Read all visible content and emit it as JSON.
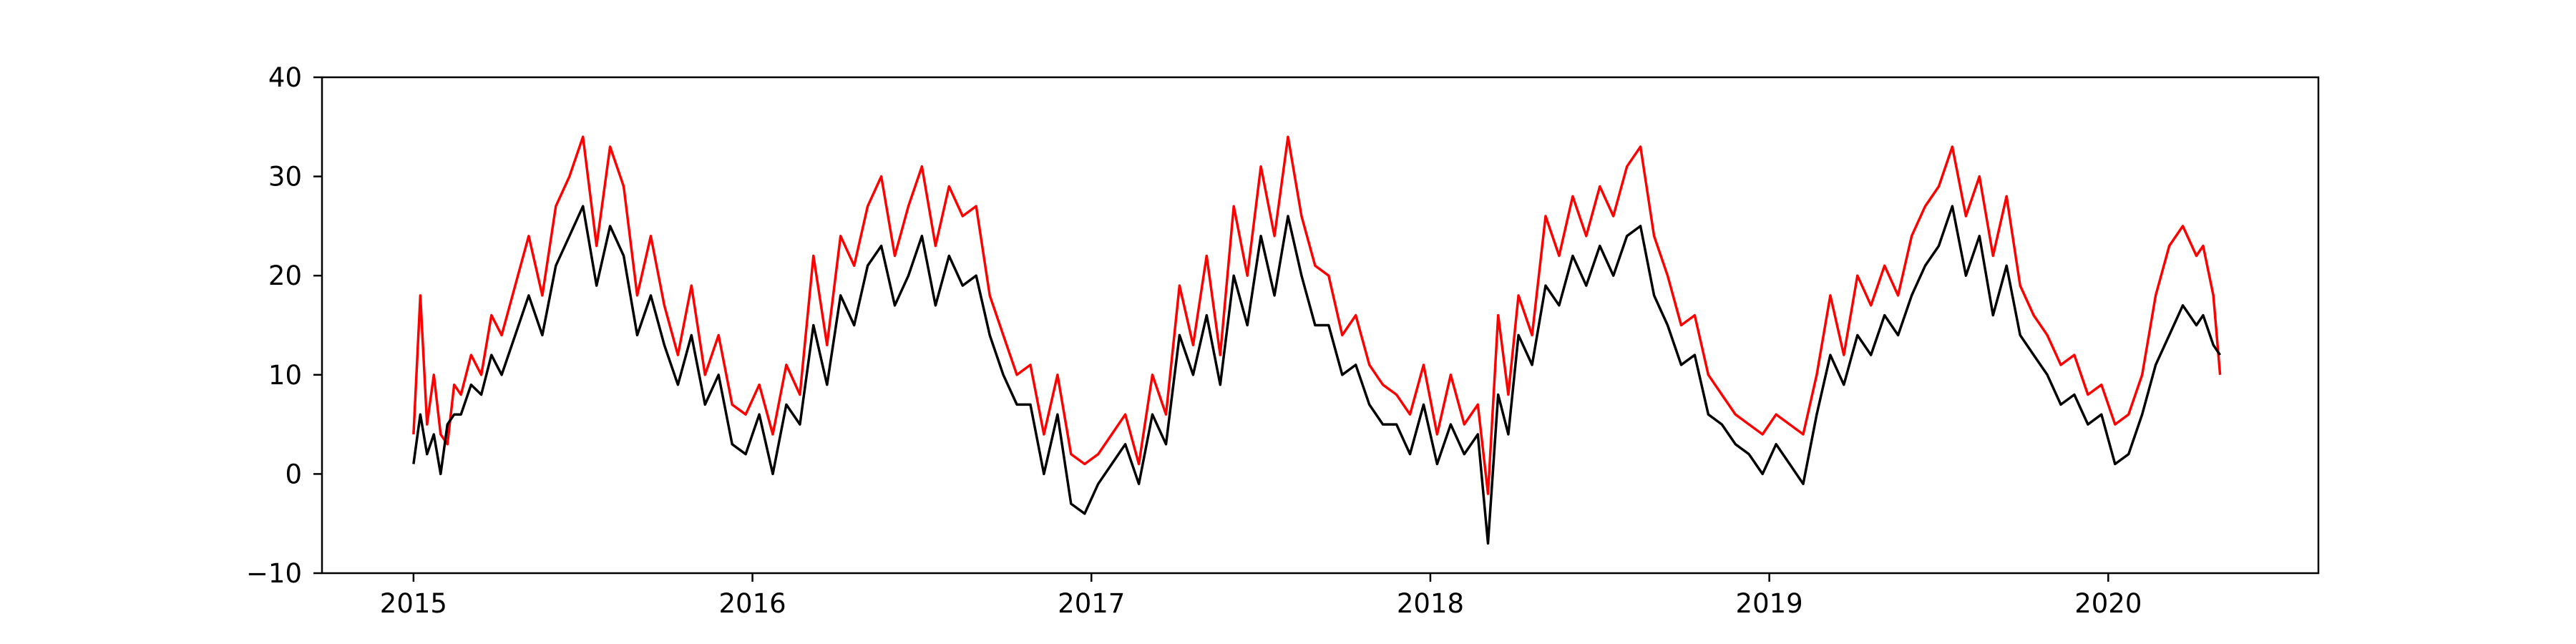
{
  "chart_data": {
    "type": "line",
    "title": "",
    "xlabel": "",
    "ylabel": "",
    "xlim": [
      2014.73,
      2020.62
    ],
    "ylim": [
      -10,
      40
    ],
    "grid": false,
    "legend": "none",
    "x_ticks": [
      "2015",
      "2016",
      "2017",
      "2018",
      "2019",
      "2020"
    ],
    "y_ticks": [
      "−10",
      "0",
      "10",
      "20",
      "30",
      "40"
    ],
    "series": [
      {
        "color": "#ff0000",
        "x": [
          2015.0,
          2015.02,
          2015.04,
          2015.06,
          2015.08,
          2015.1,
          2015.12,
          2015.14,
          2015.17,
          2015.2,
          2015.23,
          2015.26,
          2015.3,
          2015.34,
          2015.38,
          2015.42,
          2015.46,
          2015.5,
          2015.54,
          2015.58,
          2015.62,
          2015.66,
          2015.7,
          2015.74,
          2015.78,
          2015.82,
          2015.86,
          2015.9,
          2015.94,
          2015.98,
          2016.02,
          2016.06,
          2016.1,
          2016.14,
          2016.18,
          2016.22,
          2016.26,
          2016.3,
          2016.34,
          2016.38,
          2016.42,
          2016.46,
          2016.5,
          2016.54,
          2016.58,
          2016.62,
          2016.66,
          2016.7,
          2016.74,
          2016.78,
          2016.82,
          2016.86,
          2016.9,
          2016.94,
          2016.98,
          2017.02,
          2017.06,
          2017.1,
          2017.14,
          2017.18,
          2017.22,
          2017.26,
          2017.3,
          2017.34,
          2017.38,
          2017.42,
          2017.46,
          2017.5,
          2017.54,
          2017.58,
          2017.62,
          2017.66,
          2017.7,
          2017.74,
          2017.78,
          2017.82,
          2017.86,
          2017.9,
          2017.94,
          2017.98,
          2018.02,
          2018.06,
          2018.1,
          2018.14,
          2018.17,
          2018.2,
          2018.23,
          2018.26,
          2018.3,
          2018.34,
          2018.38,
          2018.42,
          2018.46,
          2018.5,
          2018.54,
          2018.58,
          2018.62,
          2018.66,
          2018.7,
          2018.74,
          2018.78,
          2018.82,
          2018.86,
          2018.9,
          2018.94,
          2018.98,
          2019.02,
          2019.06,
          2019.1,
          2019.14,
          2019.18,
          2019.22,
          2019.26,
          2019.3,
          2019.34,
          2019.38,
          2019.42,
          2019.46,
          2019.5,
          2019.54,
          2019.58,
          2019.62,
          2019.66,
          2019.7,
          2019.74,
          2019.78,
          2019.82,
          2019.86,
          2019.9,
          2019.94,
          2019.98,
          2020.02,
          2020.06,
          2020.1,
          2020.14,
          2020.18,
          2020.22,
          2020.26,
          2020.28,
          2020.31,
          2020.33
        ],
        "y": [
          4,
          18,
          5,
          10,
          4,
          3,
          9,
          8,
          12,
          10,
          16,
          14,
          19,
          24,
          18,
          27,
          30,
          34,
          23,
          33,
          29,
          18,
          24,
          17,
          12,
          19,
          10,
          14,
          7,
          6,
          9,
          4,
          11,
          8,
          22,
          13,
          24,
          21,
          27,
          30,
          22,
          27,
          31,
          23,
          29,
          26,
          27,
          18,
          14,
          10,
          11,
          4,
          10,
          2,
          1,
          2,
          4,
          6,
          1,
          10,
          6,
          19,
          13,
          22,
          12,
          27,
          20,
          31,
          24,
          34,
          26,
          21,
          20,
          14,
          16,
          11,
          9,
          8,
          6,
          11,
          4,
          10,
          5,
          7,
          -2,
          16,
          8,
          18,
          14,
          26,
          22,
          28,
          24,
          29,
          26,
          31,
          33,
          24,
          20,
          15,
          16,
          10,
          8,
          6,
          5,
          4,
          6,
          5,
          4,
          10,
          18,
          12,
          20,
          17,
          21,
          18,
          24,
          27,
          29,
          33,
          26,
          30,
          22,
          28,
          19,
          16,
          14,
          11,
          12,
          8,
          9,
          5,
          6,
          10,
          18,
          23,
          25,
          22,
          23,
          18,
          10
        ]
      },
      {
        "color": "#000000",
        "x": [
          2015.0,
          2015.02,
          2015.04,
          2015.06,
          2015.08,
          2015.1,
          2015.12,
          2015.14,
          2015.17,
          2015.2,
          2015.23,
          2015.26,
          2015.3,
          2015.34,
          2015.38,
          2015.42,
          2015.46,
          2015.5,
          2015.54,
          2015.58,
          2015.62,
          2015.66,
          2015.7,
          2015.74,
          2015.78,
          2015.82,
          2015.86,
          2015.9,
          2015.94,
          2015.98,
          2016.02,
          2016.06,
          2016.1,
          2016.14,
          2016.18,
          2016.22,
          2016.26,
          2016.3,
          2016.34,
          2016.38,
          2016.42,
          2016.46,
          2016.5,
          2016.54,
          2016.58,
          2016.62,
          2016.66,
          2016.7,
          2016.74,
          2016.78,
          2016.82,
          2016.86,
          2016.9,
          2016.94,
          2016.98,
          2017.02,
          2017.06,
          2017.1,
          2017.14,
          2017.18,
          2017.22,
          2017.26,
          2017.3,
          2017.34,
          2017.38,
          2017.42,
          2017.46,
          2017.5,
          2017.54,
          2017.58,
          2017.62,
          2017.66,
          2017.7,
          2017.74,
          2017.78,
          2017.82,
          2017.86,
          2017.9,
          2017.94,
          2017.98,
          2018.02,
          2018.06,
          2018.1,
          2018.14,
          2018.17,
          2018.2,
          2018.23,
          2018.26,
          2018.3,
          2018.34,
          2018.38,
          2018.42,
          2018.46,
          2018.5,
          2018.54,
          2018.58,
          2018.62,
          2018.66,
          2018.7,
          2018.74,
          2018.78,
          2018.82,
          2018.86,
          2018.9,
          2018.94,
          2018.98,
          2019.02,
          2019.06,
          2019.1,
          2019.14,
          2019.18,
          2019.22,
          2019.26,
          2019.3,
          2019.34,
          2019.38,
          2019.42,
          2019.46,
          2019.5,
          2019.54,
          2019.58,
          2019.62,
          2019.66,
          2019.7,
          2019.74,
          2019.78,
          2019.82,
          2019.86,
          2019.9,
          2019.94,
          2019.98,
          2020.02,
          2020.06,
          2020.1,
          2020.14,
          2020.18,
          2020.22,
          2020.26,
          2020.28,
          2020.31,
          2020.33
        ],
        "y": [
          1,
          6,
          2,
          4,
          0,
          5,
          6,
          6,
          9,
          8,
          12,
          10,
          14,
          18,
          14,
          21,
          24,
          27,
          19,
          25,
          22,
          14,
          18,
          13,
          9,
          14,
          7,
          10,
          3,
          2,
          6,
          0,
          7,
          5,
          15,
          9,
          18,
          15,
          21,
          23,
          17,
          20,
          24,
          17,
          22,
          19,
          20,
          14,
          10,
          7,
          7,
          0,
          6,
          -3,
          -4,
          -1,
          1,
          3,
          -1,
          6,
          3,
          14,
          10,
          16,
          9,
          20,
          15,
          24,
          18,
          26,
          20,
          15,
          15,
          10,
          11,
          7,
          5,
          5,
          2,
          7,
          1,
          5,
          2,
          4,
          -7,
          8,
          4,
          14,
          11,
          19,
          17,
          22,
          19,
          23,
          20,
          24,
          25,
          18,
          15,
          11,
          12,
          6,
          5,
          3,
          2,
          0,
          3,
          1,
          -1,
          6,
          12,
          9,
          14,
          12,
          16,
          14,
          18,
          21,
          23,
          27,
          20,
          24,
          16,
          21,
          14,
          12,
          10,
          7,
          8,
          5,
          6,
          1,
          2,
          6,
          11,
          14,
          17,
          15,
          16,
          13,
          12
        ]
      }
    ]
  }
}
